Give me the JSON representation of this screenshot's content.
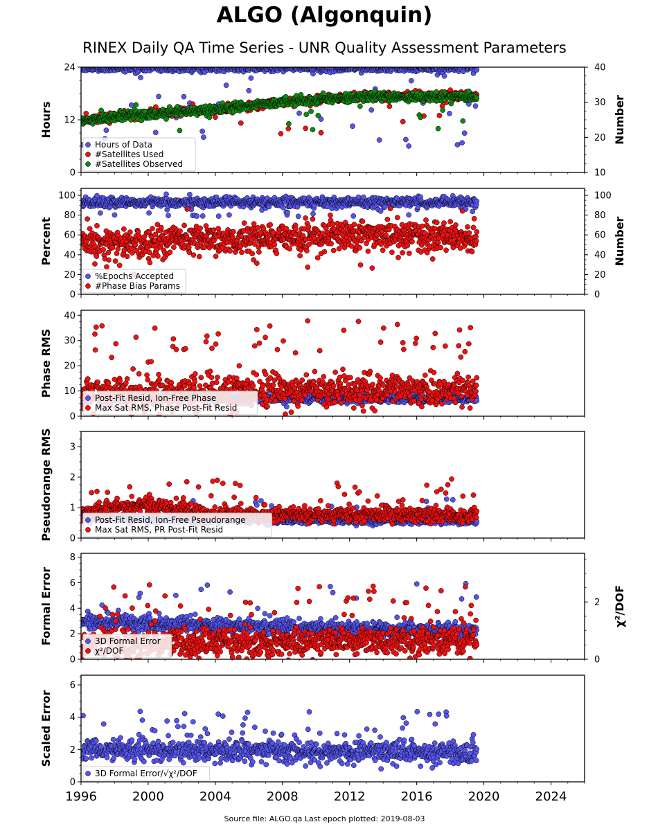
{
  "title": "ALGO (Algonquin)",
  "subtitle": "RINEX Daily QA Time Series - UNR Quality Assessment Parameters",
  "footer": "Source file: ALGO.qa Last epoch plotted: 2019-08-03",
  "colors": {
    "blue": "#5555ee",
    "red": "#ee1111",
    "green": "#118811"
  },
  "x_axis": {
    "range": [
      1996,
      2026
    ],
    "major_ticks": [
      1996,
      2000,
      2004,
      2008,
      2012,
      2016,
      2020,
      2024
    ],
    "data_end": 2019.59
  },
  "chart_data": [
    {
      "type": "scatter",
      "ylabel": "Hours",
      "ylim": [
        0,
        24
      ],
      "yticks": [
        0,
        12,
        24
      ],
      "y2label": "Number",
      "y2lim": [
        10,
        40
      ],
      "y2ticks": [
        10,
        20,
        30,
        40
      ],
      "legend": "lower-left",
      "series": [
        {
          "name": "Hours of Data",
          "axis": "left",
          "color": "blue",
          "trend": [
            [
              1996,
              23.8
            ],
            [
              2019.6,
              23.8
            ]
          ],
          "spread": 0.4,
          "outlier_rate": 0.05,
          "outlier_range": [
            6,
            23
          ]
        },
        {
          "name": "#Satellites Used",
          "axis": "right",
          "color": "red",
          "trend": [
            [
              1996,
              24.5
            ],
            [
              1998,
              26
            ],
            [
              2004,
              28
            ],
            [
              2008,
              30
            ],
            [
              2012,
              31.5
            ],
            [
              2019.6,
              32
            ]
          ],
          "spread": 0.6,
          "outlier_rate": 0.02,
          "outlier_range": [
            18,
            30
          ]
        },
        {
          "name": "#Satellites Observed",
          "axis": "right",
          "color": "green",
          "trend": [
            [
              1996,
              24.5
            ],
            [
              1998,
              26
            ],
            [
              2004,
              28
            ],
            [
              2008,
              30
            ],
            [
              2012,
              31.5
            ],
            [
              2019.6,
              31.5
            ]
          ],
          "spread": 0.6,
          "outlier_rate": 0.02,
          "outlier_range": [
            18,
            30
          ]
        }
      ]
    },
    {
      "type": "scatter",
      "ylabel": "Percent",
      "ylim": [
        0,
        107
      ],
      "yticks": [
        0,
        20,
        40,
        60,
        80,
        100
      ],
      "y2label": "Number",
      "y2lim": [
        0,
        107
      ],
      "y2ticks": [
        0,
        20,
        40,
        60,
        80,
        100
      ],
      "legend": "lower-left",
      "series": [
        {
          "name": "%Epochs Accepted",
          "axis": "left",
          "color": "blue",
          "trend": [
            [
              1996,
              93
            ],
            [
              2019.6,
              93
            ]
          ],
          "spread": 2.5,
          "outlier_rate": 0.03,
          "outlier_range": [
            78,
            90
          ]
        },
        {
          "name": "#Phase Bias Params",
          "axis": "right",
          "color": "red",
          "trend": [
            [
              1996,
              50
            ],
            [
              2000,
              53
            ],
            [
              2008,
              56
            ],
            [
              2012,
              60
            ],
            [
              2019.6,
              58
            ]
          ],
          "spread": 7,
          "outlier_rate": 0.03,
          "outlier_range": [
            20,
            90
          ]
        }
      ]
    },
    {
      "type": "scatter",
      "ylabel": "Phase RMS",
      "ylim": [
        0,
        42
      ],
      "yticks": [
        0,
        10,
        20,
        30,
        40
      ],
      "legend": "lower-left",
      "series": [
        {
          "name": "Post-Fit Resid, Ion-Free Phase",
          "axis": "left",
          "color": "blue",
          "trend": [
            [
              1996,
              7
            ],
            [
              2019.6,
              7
            ]
          ],
          "spread": 0.8,
          "outlier_rate": 0.01,
          "outlier_range": [
            3,
            10
          ]
        },
        {
          "name": "Max Sat RMS, Phase Post-Fit Resid",
          "axis": "left",
          "color": "red",
          "trend": [
            [
              1996,
              9
            ],
            [
              2019.6,
              11
            ]
          ],
          "spread": 3,
          "outlier_rate": 0.05,
          "outlier_range": [
            18,
            38
          ]
        }
      ]
    },
    {
      "type": "scatter",
      "ylabel": "Pseudorange RMS",
      "ylim": [
        0,
        3.5
      ],
      "yticks": [
        0,
        1,
        2,
        3
      ],
      "legend": "lower-left",
      "series": [
        {
          "name": "Post-Fit Resid, Ion-Free Pseudorange",
          "axis": "left",
          "color": "blue",
          "trend": [
            [
              1996,
              0.65
            ],
            [
              2019.6,
              0.55
            ]
          ],
          "spread": 0.06,
          "outlier_rate": 0.01,
          "outlier_range": [
            0.8,
            1.3
          ]
        },
        {
          "name": "Max Sat RMS, PR Post-Fit Resid",
          "axis": "left",
          "color": "red",
          "trend": [
            [
              1996,
              0.85
            ],
            [
              1999.5,
              1.1
            ],
            [
              2004,
              0.8
            ],
            [
              2019.6,
              0.75
            ]
          ],
          "spread": 0.12,
          "outlier_rate": 0.05,
          "outlier_range": [
            1.2,
            2.0
          ]
        }
      ]
    },
    {
      "type": "scatter",
      "ylabel": "Formal Error",
      "ylim": [
        0,
        8.3
      ],
      "yticks": [
        0,
        2,
        4,
        6,
        8
      ],
      "y2label": "χ²/DOF",
      "y2lim": [
        0,
        3.7
      ],
      "y2ticks": [
        0,
        2
      ],
      "legend": "lower-left",
      "series": [
        {
          "name": "3D Formal Error",
          "axis": "left",
          "color": "blue",
          "trend": [
            [
              1996,
              3.0
            ],
            [
              2004,
              2.6
            ],
            [
              2019.6,
              2.2
            ]
          ],
          "spread": 0.3,
          "outlier_rate": 0.02,
          "outlier_range": [
            3.5,
            6
          ]
        },
        {
          "name": "χ²/DOF",
          "axis": "right",
          "color": "red",
          "trend": [
            [
              1996,
              0.55
            ],
            [
              2019.6,
              0.65
            ]
          ],
          "spread": 0.25,
          "outlier_rate": 0.05,
          "outlier_range": [
            1.2,
            2.6
          ]
        }
      ]
    },
    {
      "type": "scatter",
      "ylabel": "Scaled Error",
      "ylim": [
        0,
        6.6
      ],
      "yticks": [
        0,
        2,
        4,
        6
      ],
      "legend": "lower-left",
      "series": [
        {
          "name": "3D Formal Error/√χ²/DOF",
          "axis": "left",
          "color": "blue",
          "trend": [
            [
              1996,
              2.0
            ],
            [
              2019.6,
              1.8
            ]
          ],
          "spread": 0.35,
          "outlier_rate": 0.04,
          "outlier_range": [
            2.8,
            4.5
          ]
        }
      ]
    }
  ]
}
